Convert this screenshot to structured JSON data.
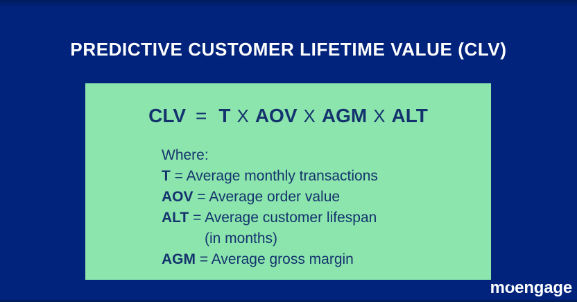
{
  "colors": {
    "background_navy": "#01237C",
    "card_green": "#8CE5AD",
    "card_text_navy": "#14336E",
    "title_white": "#FFFFFF"
  },
  "header": {
    "title": "PREDICTIVE CUSTOMER LIFETIME VALUE (CLV)"
  },
  "card": {
    "formula": {
      "result": "CLV",
      "equals": "=",
      "multiply": "X",
      "terms": [
        "T",
        "AOV",
        "AGM",
        "ALT"
      ]
    },
    "definitions": {
      "heading": "Where:",
      "items": [
        {
          "term": "T",
          "separator": "=",
          "description": "Average monthly transactions"
        },
        {
          "term": "AOV",
          "separator": "=",
          "description": "Average order value"
        },
        {
          "term": "ALT",
          "separator": "=",
          "description": "Average customer lifespan",
          "continuation": "(in months)"
        },
        {
          "term": "AGM",
          "separator": "=",
          "description": "Average gross margin"
        }
      ]
    }
  },
  "footer": {
    "logo": {
      "part1": "m",
      "part2": "o",
      "part3": "engage"
    }
  }
}
